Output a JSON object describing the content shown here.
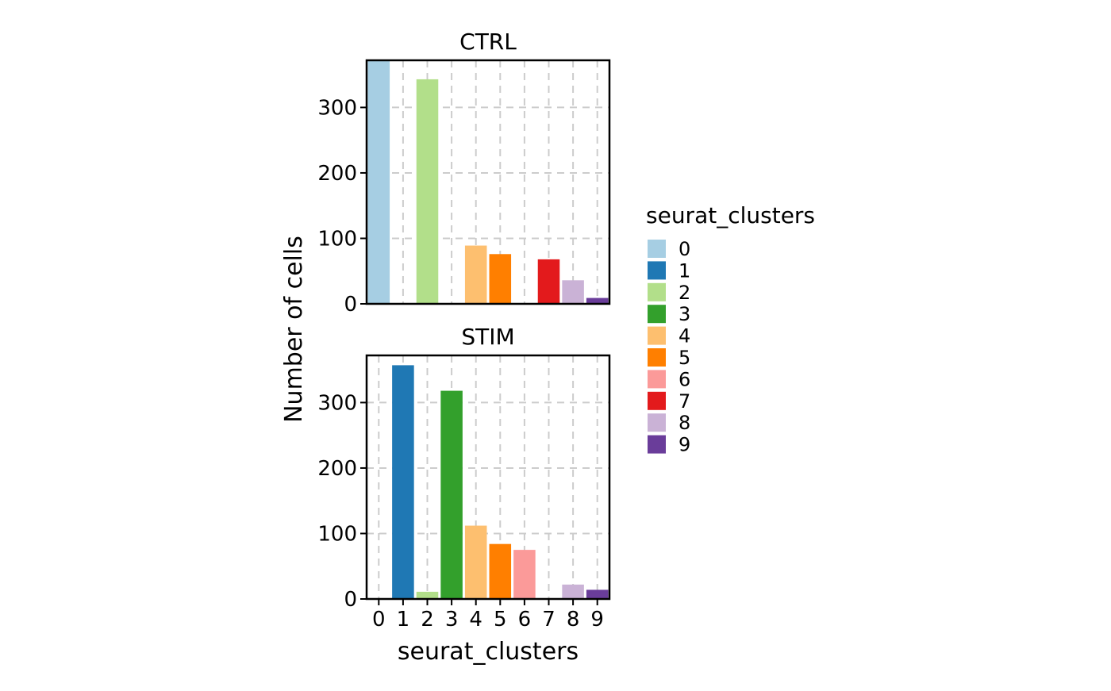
{
  "chart_data": {
    "type": "bar",
    "facets": [
      "CTRL",
      "STIM"
    ],
    "categories": [
      "0",
      "1",
      "2",
      "3",
      "4",
      "5",
      "6",
      "7",
      "8",
      "9"
    ],
    "series": [
      {
        "name": "CTRL",
        "values": [
          372,
          0,
          343,
          0,
          89,
          76,
          0,
          68,
          36,
          9
        ]
      },
      {
        "name": "STIM",
        "values": [
          0,
          357,
          11,
          318,
          112,
          84,
          75,
          0,
          22,
          14
        ]
      }
    ],
    "xlabel": "seurat_clusters",
    "ylabel": "Number of cells",
    "yticks": [
      "0",
      "100",
      "200",
      "300"
    ],
    "ylim": [
      0,
      372
    ],
    "grid": true,
    "legend": {
      "title": "seurat_clusters",
      "placement": "right",
      "items": [
        "0",
        "1",
        "2",
        "3",
        "4",
        "5",
        "6",
        "7",
        "8",
        "9"
      ],
      "colors": [
        "#a6cee3",
        "#1f78b4",
        "#b2df8a",
        "#33a02c",
        "#fdbf6f",
        "#ff7f00",
        "#fb9a99",
        "#e31a1c",
        "#cab2d6",
        "#6a3d9a"
      ]
    }
  }
}
